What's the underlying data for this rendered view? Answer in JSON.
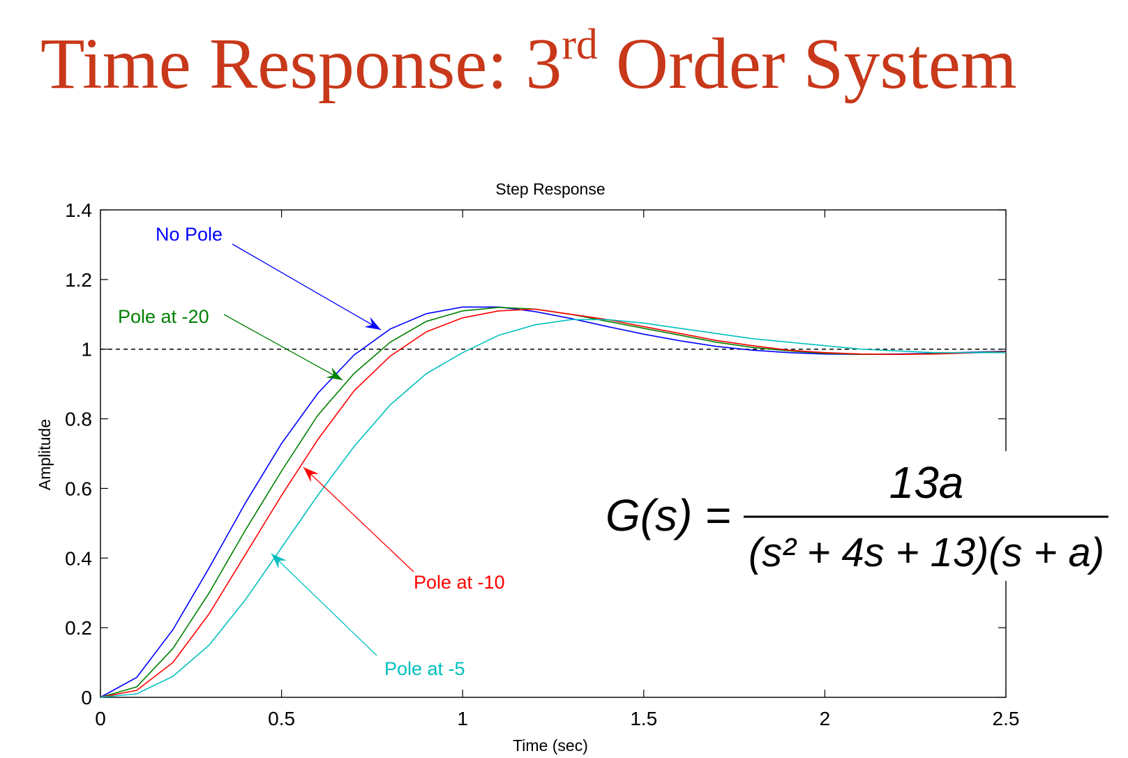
{
  "chart_data": {
    "type": "line",
    "title_parts": [
      "Time Response: 3",
      "rd",
      " Order System"
    ],
    "chart_title": "Step Response",
    "x_label": "Time (sec)",
    "y_label": "Amplitude",
    "x": [
      0,
      0.1,
      0.2,
      0.3,
      0.4,
      0.5,
      0.6,
      0.7,
      0.8,
      0.9,
      1.0,
      1.1,
      1.2,
      1.3,
      1.4,
      1.5,
      1.6,
      1.7,
      1.8,
      1.9,
      2.0,
      2.1,
      2.2,
      2.3,
      2.4,
      2.5
    ],
    "series": [
      {
        "name": "No Pole",
        "color": "#0000ff",
        "values": [
          0,
          0.057,
          0.194,
          0.372,
          0.558,
          0.729,
          0.873,
          0.983,
          1.058,
          1.102,
          1.121,
          1.121,
          1.108,
          1.088,
          1.065,
          1.043,
          1.024,
          1.008,
          0.997,
          0.99,
          0.986,
          0.985,
          0.986,
          0.988,
          0.991,
          0.994
        ]
      },
      {
        "name": "Pole at -20",
        "color": "#008000",
        "values": [
          0,
          0.03,
          0.14,
          0.3,
          0.48,
          0.65,
          0.81,
          0.93,
          1.02,
          1.08,
          1.11,
          1.12,
          1.115,
          1.1,
          1.08,
          1.06,
          1.04,
          1.02,
          1.005,
          0.995,
          0.988,
          0.985,
          0.985,
          0.987,
          0.99,
          0.993
        ]
      },
      {
        "name": "Pole at -10",
        "color": "#ff0000",
        "values": [
          0,
          0.02,
          0.1,
          0.24,
          0.41,
          0.58,
          0.74,
          0.88,
          0.98,
          1.05,
          1.09,
          1.11,
          1.115,
          1.1,
          1.085,
          1.065,
          1.045,
          1.025,
          1.01,
          0.997,
          0.99,
          0.986,
          0.985,
          0.986,
          0.989,
          0.992
        ]
      },
      {
        "name": "Pole at -5",
        "color": "#00bfbf",
        "values": [
          0,
          0.01,
          0.06,
          0.15,
          0.28,
          0.43,
          0.58,
          0.72,
          0.84,
          0.93,
          0.99,
          1.04,
          1.07,
          1.085,
          1.085,
          1.075,
          1.06,
          1.045,
          1.03,
          1.02,
          1.01,
          1.0,
          0.995,
          0.99,
          0.99,
          0.99
        ]
      }
    ],
    "reference_line": 1,
    "xlim": [
      0,
      2.5
    ],
    "xticks": [
      0,
      0.5,
      1,
      1.5,
      2,
      2.5
    ],
    "ylim": [
      0,
      1.4
    ],
    "yticks": [
      0,
      0.2,
      0.4,
      0.6,
      0.8,
      1,
      1.2,
      1.4
    ],
    "grid": false,
    "formula": {
      "lhs": "G(s) =",
      "numerator": "13a",
      "denominator": "(s² + 4s + 13)(s + a)"
    }
  }
}
